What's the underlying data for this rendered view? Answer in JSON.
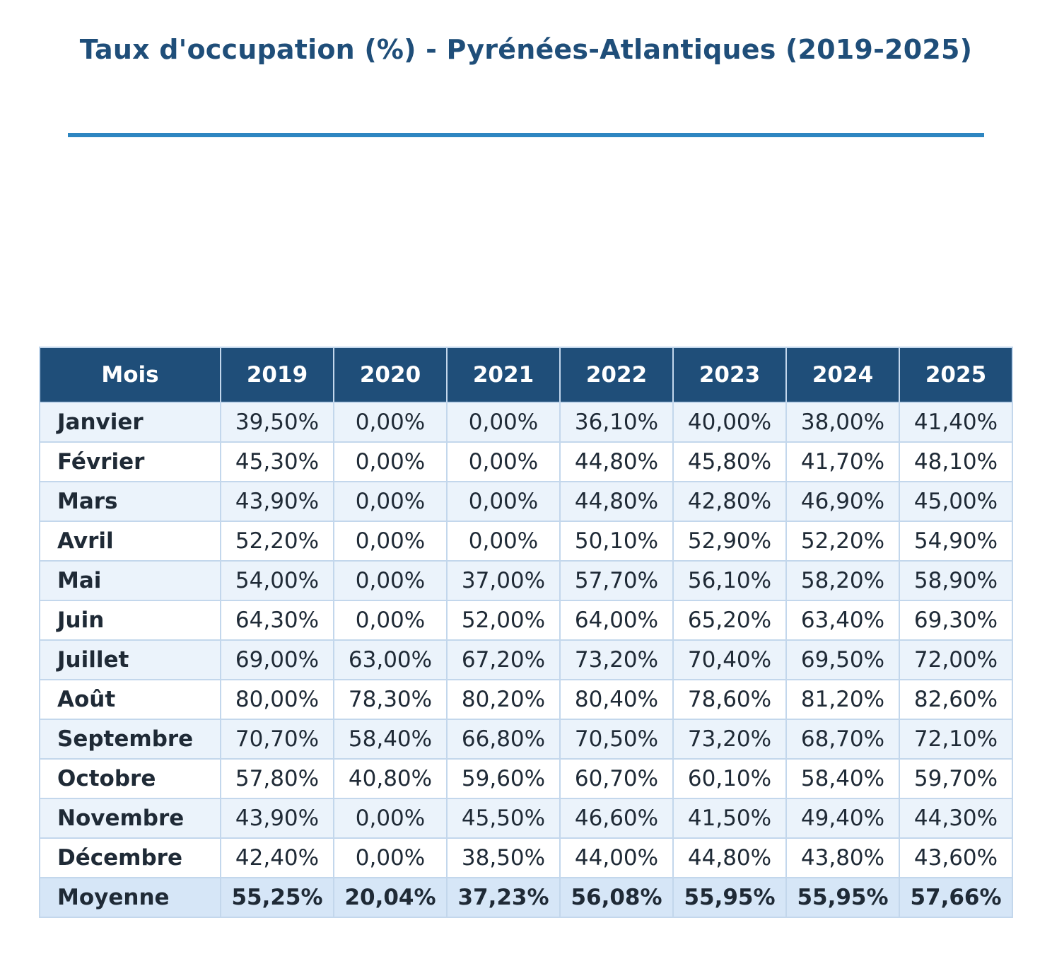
{
  "colors": {
    "title": "#1f4e79",
    "rule": "#2e86c1",
    "header_bg": "#1f4e79",
    "header_text": "#ffffff",
    "row_alt": "#ebf3fb",
    "row_plain": "#ffffff",
    "average_row": "#d6e6f7",
    "border": "#c3d7ec"
  },
  "chart_data": {
    "type": "table",
    "title": "Taux d'occupation (%) - Pyrénées-Atlantiques (2019-2025)",
    "columns": [
      "Mois",
      "2019",
      "2020",
      "2021",
      "2022",
      "2023",
      "2024",
      "2025"
    ],
    "rows": [
      {
        "label": "Janvier",
        "values": [
          "39,50%",
          "0,00%",
          "0,00%",
          "36,10%",
          "40,00%",
          "38,00%",
          "41,40%"
        ]
      },
      {
        "label": "Février",
        "values": [
          "45,30%",
          "0,00%",
          "0,00%",
          "44,80%",
          "45,80%",
          "41,70%",
          "48,10%"
        ]
      },
      {
        "label": "Mars",
        "values": [
          "43,90%",
          "0,00%",
          "0,00%",
          "44,80%",
          "42,80%",
          "46,90%",
          "45,00%"
        ]
      },
      {
        "label": "Avril",
        "values": [
          "52,20%",
          "0,00%",
          "0,00%",
          "50,10%",
          "52,90%",
          "52,20%",
          "54,90%"
        ]
      },
      {
        "label": "Mai",
        "values": [
          "54,00%",
          "0,00%",
          "37,00%",
          "57,70%",
          "56,10%",
          "58,20%",
          "58,90%"
        ]
      },
      {
        "label": "Juin",
        "values": [
          "64,30%",
          "0,00%",
          "52,00%",
          "64,00%",
          "65,20%",
          "63,40%",
          "69,30%"
        ]
      },
      {
        "label": "Juillet",
        "values": [
          "69,00%",
          "63,00%",
          "67,20%",
          "73,20%",
          "70,40%",
          "69,50%",
          "72,00%"
        ]
      },
      {
        "label": "Août",
        "values": [
          "80,00%",
          "78,30%",
          "80,20%",
          "80,40%",
          "78,60%",
          "81,20%",
          "82,60%"
        ]
      },
      {
        "label": "Septembre",
        "values": [
          "70,70%",
          "58,40%",
          "66,80%",
          "70,50%",
          "73,20%",
          "68,70%",
          "72,10%"
        ]
      },
      {
        "label": "Octobre",
        "values": [
          "57,80%",
          "40,80%",
          "59,60%",
          "60,70%",
          "60,10%",
          "58,40%",
          "59,70%"
        ]
      },
      {
        "label": "Novembre",
        "values": [
          "43,90%",
          "0,00%",
          "45,50%",
          "46,60%",
          "41,50%",
          "49,40%",
          "44,30%"
        ]
      },
      {
        "label": "Décembre",
        "values": [
          "42,40%",
          "0,00%",
          "38,50%",
          "44,00%",
          "44,80%",
          "43,80%",
          "43,60%"
        ]
      }
    ],
    "average": {
      "label": "Moyenne",
      "values": [
        "55,25%",
        "20,04%",
        "37,23%",
        "56,08%",
        "55,95%",
        "55,95%",
        "57,66%"
      ]
    }
  }
}
